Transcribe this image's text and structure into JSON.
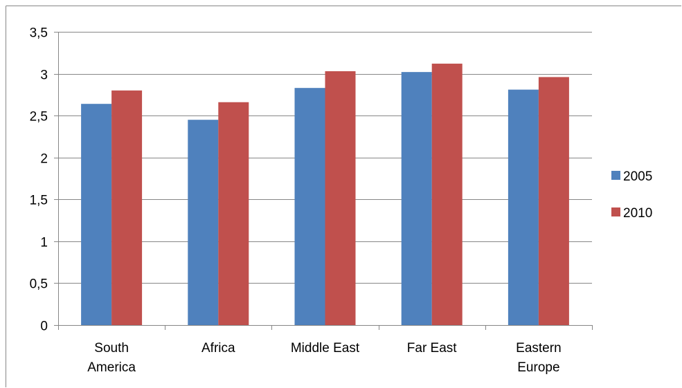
{
  "chart_data": {
    "type": "bar",
    "categories": [
      [
        "South",
        "America"
      ],
      [
        "Africa"
      ],
      [
        "Middle East"
      ],
      [
        "Far East"
      ],
      [
        "Eastern",
        "Europe"
      ]
    ],
    "series": [
      {
        "name": "2005",
        "color": "#4f81bd",
        "values": [
          2.64,
          2.45,
          2.83,
          3.02,
          2.81
        ]
      },
      {
        "name": "2010",
        "color": "#c0504d",
        "values": [
          2.8,
          2.66,
          3.03,
          3.12,
          2.96
        ]
      }
    ],
    "ylim": [
      0,
      3.5
    ],
    "yticks": [
      "0",
      "0,5",
      "1",
      "1,5",
      "2",
      "2,5",
      "3",
      "3,5"
    ],
    "grid": true,
    "legend_position": "right",
    "title": "",
    "xlabel": "",
    "ylabel": ""
  }
}
